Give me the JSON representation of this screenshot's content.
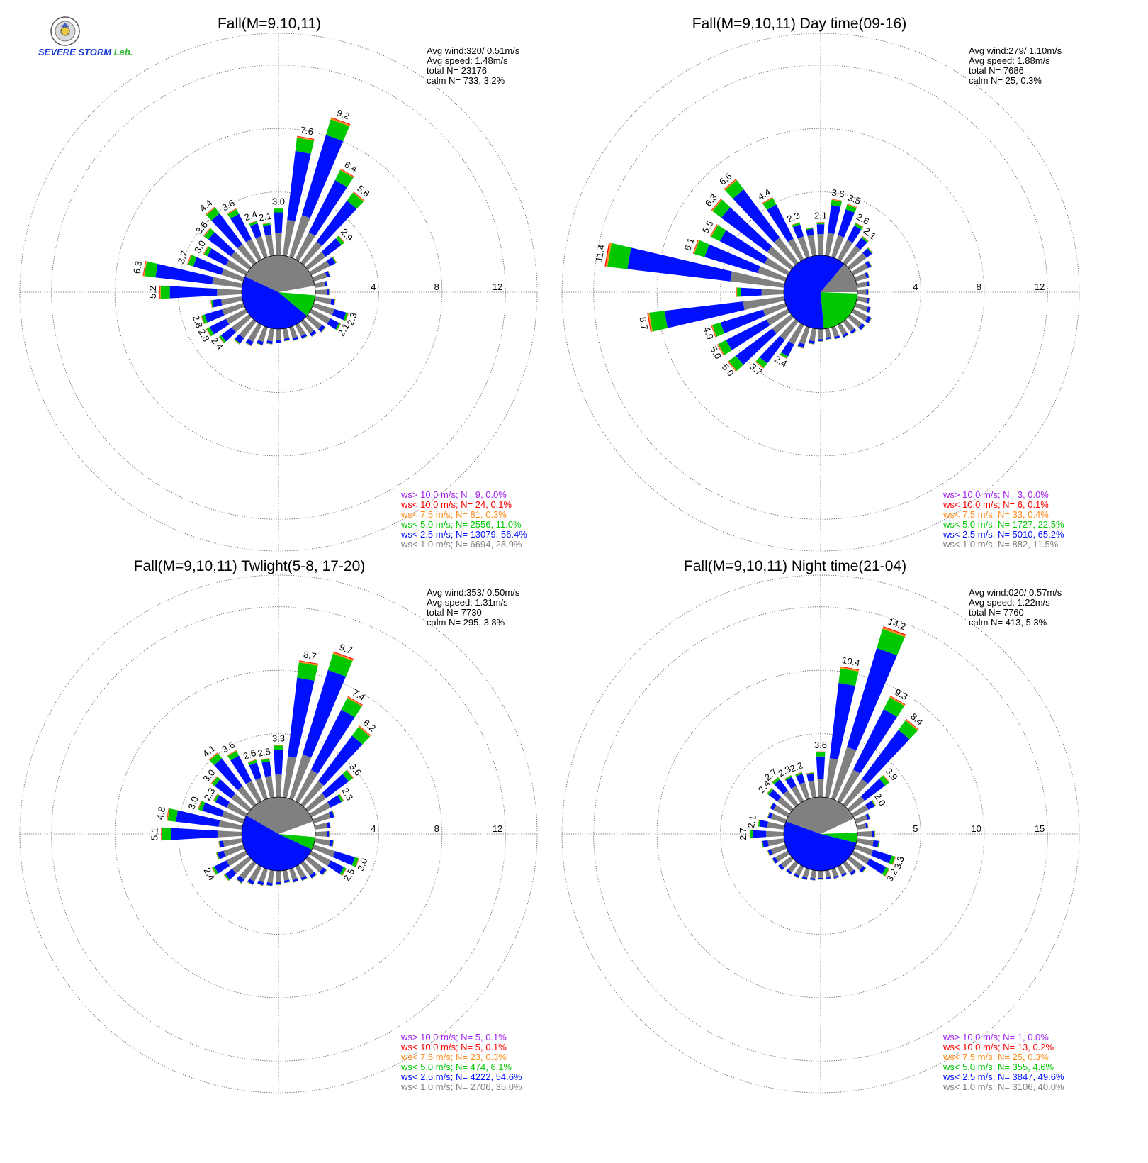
{
  "logo": {
    "text": "SEVERE STORM",
    "suffix": "Lab."
  },
  "colors": {
    "gt10": "#a020f0",
    "lt10": "#ff0000",
    "lt7_5": "#ff8c1a",
    "lt5": "#00c800",
    "lt2_5": "#0010ff",
    "lt1": "#808080",
    "calm": "#ffffff"
  },
  "chart_data": [
    {
      "type": "windrose",
      "title": "Fall(M=9,10,11)",
      "rings": [
        4,
        8,
        12
      ],
      "rmax": 14,
      "stats": {
        "avg_wind": "Avg wind:320/ 0.51m/s",
        "avg_speed": "Avg speed: 1.48m/s",
        "total": "total N=      23176",
        "calm": "calm N=    733,   3.2%"
      },
      "legend": [
        {
          "text": "ws> 10.0 m/s; N=     9,  0.0%",
          "color": "#a020f0"
        },
        {
          "text": "ws< 10.0 m/s; N=    24,  0.1%",
          "color": "#ff0000"
        },
        {
          "text": "ws<  7.5 m/s; N=    81,  0.3%",
          "color": "#ff8c1a"
        },
        {
          "text": "ws<  5.0 m/s; N=  2556, 11.0%",
          "color": "#00c800"
        },
        {
          "text": "ws<  2.5 m/s; N= 13079, 56.4%",
          "color": "#0010ff"
        },
        {
          "text": "ws<  1.0 m/s; N=  6694, 28.9%",
          "color": "#808080"
        }
      ],
      "pie": [
        {
          "name": "calm",
          "start": 80,
          "end": 95
        },
        {
          "name": "lt5",
          "start": 95,
          "end": 130
        },
        {
          "name": "lt2_5",
          "start": 130,
          "end": 295
        },
        {
          "name": "lt1",
          "start": 295,
          "end": 440
        }
      ],
      "bars": [
        {
          "dir": 0,
          "total": 3.0,
          "label": "3.0"
        },
        {
          "dir": 10,
          "total": 7.6,
          "label": "7.6"
        },
        {
          "dir": 20,
          "total": 9.2,
          "label": "9.2"
        },
        {
          "dir": 30,
          "total": 6.4,
          "label": "6.4"
        },
        {
          "dir": 40,
          "total": 5.6,
          "label": "5.6"
        },
        {
          "dir": 50,
          "total": 2.9,
          "label": "2.9"
        },
        {
          "dir": 60,
          "total": 1.8
        },
        {
          "dir": 70,
          "total": 1.1
        },
        {
          "dir": 80,
          "total": 0.8
        },
        {
          "dir": 90,
          "total": 0.9
        },
        {
          "dir": 100,
          "total": 1.3
        },
        {
          "dir": 110,
          "total": 2.3,
          "label": "2.3"
        },
        {
          "dir": 120,
          "total": 2.1,
          "label": "2.1"
        },
        {
          "dir": 130,
          "total": 1.4
        },
        {
          "dir": 140,
          "total": 1.2
        },
        {
          "dir": 150,
          "total": 1.0
        },
        {
          "dir": 160,
          "total": 0.9
        },
        {
          "dir": 170,
          "total": 0.8
        },
        {
          "dir": 180,
          "total": 0.9
        },
        {
          "dir": 190,
          "total": 1.0
        },
        {
          "dir": 200,
          "total": 1.2
        },
        {
          "dir": 210,
          "total": 1.5
        },
        {
          "dir": 220,
          "total": 1.8
        },
        {
          "dir": 230,
          "total": 2.4,
          "label": "2.4"
        },
        {
          "dir": 240,
          "total": 2.8,
          "label": "2.8"
        },
        {
          "dir": 250,
          "total": 2.8,
          "label": "2.8"
        },
        {
          "dir": 260,
          "total": 2.0
        },
        {
          "dir": 270,
          "total": 5.2,
          "label": "5.2"
        },
        {
          "dir": 280,
          "total": 6.3,
          "label": "6.3"
        },
        {
          "dir": 290,
          "total": 3.7,
          "label": "3.7"
        },
        {
          "dir": 300,
          "total": 3.0,
          "label": "3.0"
        },
        {
          "dir": 310,
          "total": 3.6,
          "label": "3.6"
        },
        {
          "dir": 320,
          "total": 4.4,
          "label": "4.4"
        },
        {
          "dir": 330,
          "total": 3.6,
          "label": "3.6"
        },
        {
          "dir": 340,
          "total": 2.4,
          "label": "2.4"
        },
        {
          "dir": 350,
          "total": 2.1,
          "label": "2.1"
        }
      ]
    },
    {
      "type": "windrose",
      "title": "Fall(M=9,10,11) Day time(09-16)",
      "rings": [
        4,
        8,
        12
      ],
      "rmax": 14,
      "stats": {
        "avg_wind": "Avg wind:279/ 1.10m/s",
        "avg_speed": "Avg speed: 1.88m/s",
        "total": "total N=        7686",
        "calm": "calm N=     25,   0.3%"
      },
      "legend": [
        {
          "text": "ws> 10.0 m/s; N=     3,  0.0%",
          "color": "#a020f0"
        },
        {
          "text": "ws< 10.0 m/s; N=     6,  0.1%",
          "color": "#ff0000"
        },
        {
          "text": "ws<  7.5 m/s; N=    33,  0.4%",
          "color": "#ff8c1a"
        },
        {
          "text": "ws<  5.0 m/s; N=  1727, 22.5%",
          "color": "#00c800"
        },
        {
          "text": "ws<  2.5 m/s; N=  5010, 65.2%",
          "color": "#0010ff"
        },
        {
          "text": "ws<  1.0 m/s; N=   882, 11.5%",
          "color": "#808080"
        }
      ],
      "pie": [
        {
          "name": "lt1",
          "start": 40,
          "end": 90
        },
        {
          "name": "calm",
          "start": 90,
          "end": 92
        },
        {
          "name": "lt5",
          "start": 92,
          "end": 175
        },
        {
          "name": "lt2_5",
          "start": 175,
          "end": 400
        }
      ],
      "bars": [
        {
          "dir": 0,
          "total": 2.1,
          "label": "2.1"
        },
        {
          "dir": 10,
          "total": 3.6,
          "label": "3.6"
        },
        {
          "dir": 20,
          "total": 3.5,
          "label": "3.5"
        },
        {
          "dir": 30,
          "total": 2.6,
          "label": "2.6"
        },
        {
          "dir": 40,
          "total": 2.1,
          "label": "2.1"
        },
        {
          "dir": 50,
          "total": 1.8
        },
        {
          "dir": 60,
          "total": 1.3
        },
        {
          "dir": 70,
          "total": 0.9
        },
        {
          "dir": 80,
          "total": 0.8
        },
        {
          "dir": 90,
          "total": 0.7
        },
        {
          "dir": 100,
          "total": 0.8
        },
        {
          "dir": 110,
          "total": 1.0
        },
        {
          "dir": 120,
          "total": 1.3
        },
        {
          "dir": 130,
          "total": 1.2
        },
        {
          "dir": 140,
          "total": 1.0
        },
        {
          "dir": 150,
          "total": 0.9
        },
        {
          "dir": 160,
          "total": 0.8
        },
        {
          "dir": 170,
          "total": 0.7
        },
        {
          "dir": 180,
          "total": 0.8
        },
        {
          "dir": 190,
          "total": 1.0
        },
        {
          "dir": 200,
          "total": 1.4
        },
        {
          "dir": 210,
          "total": 2.4,
          "label": "2.4"
        },
        {
          "dir": 220,
          "total": 3.7,
          "label": "3.7"
        },
        {
          "dir": 230,
          "total": 5.0,
          "label": "5.0"
        },
        {
          "dir": 240,
          "total": 5.0,
          "label": "5.0"
        },
        {
          "dir": 250,
          "total": 4.9,
          "label": "4.9"
        },
        {
          "dir": 260,
          "total": 8.7,
          "label": "8.7"
        },
        {
          "dir": 270,
          "total": 3.0
        },
        {
          "dir": 280,
          "total": 11.4,
          "label": "11.4"
        },
        {
          "dir": 290,
          "total": 6.1,
          "label": "6.1"
        },
        {
          "dir": 300,
          "total": 5.5,
          "label": "5.5"
        },
        {
          "dir": 310,
          "total": 6.3,
          "label": "6.3"
        },
        {
          "dir": 320,
          "total": 6.6,
          "label": "6.6"
        },
        {
          "dir": 330,
          "total": 4.4,
          "label": "4.4"
        },
        {
          "dir": 340,
          "total": 2.3,
          "label": "2.3"
        },
        {
          "dir": 350,
          "total": 1.8
        }
      ]
    },
    {
      "type": "windrose",
      "title": "Fall(M=9,10,11) Twlight(5-8, 17-20)",
      "rings": [
        4,
        8,
        12
      ],
      "rmax": 14,
      "stats": {
        "avg_wind": "Avg wind:353/ 0.50m/s",
        "avg_speed": "Avg speed: 1.31m/s",
        "total": "total N=        7730",
        "calm": "calm N=    295,   3.8%"
      },
      "legend": [
        {
          "text": "ws> 10.0 m/s; N=     5,  0.1%",
          "color": "#a020f0"
        },
        {
          "text": "ws< 10.0 m/s; N=     5,  0.1%",
          "color": "#ff0000"
        },
        {
          "text": "ws<  7.5 m/s; N=    23,  0.3%",
          "color": "#ff8c1a"
        },
        {
          "text": "ws<  5.0 m/s; N=   474,  6.1%",
          "color": "#00c800"
        },
        {
          "text": "ws<  2.5 m/s; N=  4222, 54.6%",
          "color": "#0010ff"
        },
        {
          "text": "ws<  1.0 m/s; N=  2706, 35.0%",
          "color": "#808080"
        }
      ],
      "pie": [
        {
          "name": "calm",
          "start": 70,
          "end": 95
        },
        {
          "name": "lt5",
          "start": 95,
          "end": 115
        },
        {
          "name": "lt2_5",
          "start": 115,
          "end": 300
        },
        {
          "name": "lt1",
          "start": 300,
          "end": 430
        }
      ],
      "bars": [
        {
          "dir": 0,
          "total": 3.3,
          "label": "3.3"
        },
        {
          "dir": 10,
          "total": 8.7,
          "label": "8.7"
        },
        {
          "dir": 20,
          "total": 9.7,
          "label": "9.7"
        },
        {
          "dir": 30,
          "total": 7.4,
          "label": "7.4"
        },
        {
          "dir": 40,
          "total": 6.2,
          "label": "6.2"
        },
        {
          "dir": 50,
          "total": 3.6,
          "label": "3.6"
        },
        {
          "dir": 60,
          "total": 2.3,
          "label": "2.3"
        },
        {
          "dir": 70,
          "total": 1.4
        },
        {
          "dir": 80,
          "total": 1.0
        },
        {
          "dir": 90,
          "total": 0.9
        },
        {
          "dir": 100,
          "total": 1.2
        },
        {
          "dir": 110,
          "total": 3.0,
          "label": "3.0"
        },
        {
          "dir": 120,
          "total": 2.5,
          "label": "2.5"
        },
        {
          "dir": 130,
          "total": 1.5
        },
        {
          "dir": 140,
          "total": 1.2
        },
        {
          "dir": 150,
          "total": 1.0
        },
        {
          "dir": 160,
          "total": 0.9
        },
        {
          "dir": 170,
          "total": 0.8
        },
        {
          "dir": 180,
          "total": 0.9
        },
        {
          "dir": 190,
          "total": 1.0
        },
        {
          "dir": 200,
          "total": 1.1
        },
        {
          "dir": 210,
          "total": 1.3
        },
        {
          "dir": 220,
          "total": 1.6
        },
        {
          "dir": 230,
          "total": 2.0
        },
        {
          "dir": 240,
          "total": 2.4,
          "label": "2.4"
        },
        {
          "dir": 250,
          "total": 1.8
        },
        {
          "dir": 260,
          "total": 1.5
        },
        {
          "dir": 270,
          "total": 5.1,
          "label": "5.1"
        },
        {
          "dir": 280,
          "total": 4.8,
          "label": "4.8"
        },
        {
          "dir": 290,
          "total": 3.0,
          "label": "3.0"
        },
        {
          "dir": 300,
          "total": 2.3,
          "label": "2.3"
        },
        {
          "dir": 310,
          "total": 3.0,
          "label": "3.0"
        },
        {
          "dir": 320,
          "total": 4.1,
          "label": "4.1"
        },
        {
          "dir": 330,
          "total": 3.6,
          "label": "3.6"
        },
        {
          "dir": 340,
          "total": 2.6,
          "label": "2.6"
        },
        {
          "dir": 350,
          "total": 2.5,
          "label": "2.5"
        }
      ]
    },
    {
      "type": "windrose",
      "title": "Fall(M=9,10,11) Night time(21-04)",
      "rings": [
        5,
        10,
        15
      ],
      "rmax": 17.5,
      "stats": {
        "avg_wind": "Avg wind:020/ 0.57m/s",
        "avg_speed": "Avg speed: 1.22m/s",
        "total": "total N=        7760",
        "calm": "calm N=    413,   5.3%"
      },
      "legend": [
        {
          "text": "ws> 10.0 m/s; N=     1,  0.0%",
          "color": "#a020f0"
        },
        {
          "text": "ws< 10.0 m/s; N=    13,  0.2%",
          "color": "#ff0000"
        },
        {
          "text": "ws<  7.5 m/s; N=    25,  0.3%",
          "color": "#ff8c1a"
        },
        {
          "text": "ws<  5.0 m/s; N=   355,  4.6%",
          "color": "#00c800"
        },
        {
          "text": "ws<  2.5 m/s; N=  3847, 49.6%",
          "color": "#0010ff"
        },
        {
          "text": "ws<  1.0 m/s; N=  3106, 40.0%",
          "color": "#808080"
        }
      ],
      "pie": [
        {
          "name": "calm",
          "start": 65,
          "end": 88
        },
        {
          "name": "lt5",
          "start": 88,
          "end": 104
        },
        {
          "name": "lt2_5",
          "start": 104,
          "end": 290
        },
        {
          "name": "lt1",
          "start": 290,
          "end": 425
        }
      ],
      "bars": [
        {
          "dir": 0,
          "total": 3.6,
          "label": "3.6"
        },
        {
          "dir": 10,
          "total": 10.4,
          "label": "10.4"
        },
        {
          "dir": 20,
          "total": 14.2,
          "label": "14.2"
        },
        {
          "dir": 30,
          "total": 9.3,
          "label": "9.3"
        },
        {
          "dir": 40,
          "total": 8.4,
          "label": "8.4"
        },
        {
          "dir": 50,
          "total": 3.9,
          "label": "3.9"
        },
        {
          "dir": 60,
          "total": 2.0,
          "label": "2.0"
        },
        {
          "dir": 70,
          "total": 1.2
        },
        {
          "dir": 80,
          "total": 0.9
        },
        {
          "dir": 90,
          "total": 1.4
        },
        {
          "dir": 100,
          "total": 1.8
        },
        {
          "dir": 110,
          "total": 3.3,
          "label": "3.3"
        },
        {
          "dir": 120,
          "total": 3.2,
          "label": "3.2"
        },
        {
          "dir": 130,
          "total": 1.6
        },
        {
          "dir": 140,
          "total": 1.2
        },
        {
          "dir": 150,
          "total": 0.9
        },
        {
          "dir": 160,
          "total": 0.8
        },
        {
          "dir": 170,
          "total": 0.7
        },
        {
          "dir": 180,
          "total": 0.7
        },
        {
          "dir": 190,
          "total": 0.8
        },
        {
          "dir": 200,
          "total": 0.9
        },
        {
          "dir": 210,
          "total": 1.0
        },
        {
          "dir": 220,
          "total": 1.1
        },
        {
          "dir": 230,
          "total": 1.3
        },
        {
          "dir": 240,
          "total": 1.4
        },
        {
          "dir": 250,
          "total": 1.5
        },
        {
          "dir": 260,
          "total": 1.8
        },
        {
          "dir": 270,
          "total": 2.7,
          "label": "2.7"
        },
        {
          "dir": 280,
          "total": 2.1,
          "label": "2.1"
        },
        {
          "dir": 290,
          "total": 1.5
        },
        {
          "dir": 300,
          "total": 1.6
        },
        {
          "dir": 310,
          "total": 2.4,
          "label": "2.4"
        },
        {
          "dir": 320,
          "total": 2.7,
          "label": "2.7"
        },
        {
          "dir": 330,
          "total": 2.3,
          "label": "2.3"
        },
        {
          "dir": 340,
          "total": 2.2,
          "label": "2.2"
        },
        {
          "dir": 350,
          "total": 2.0
        }
      ]
    }
  ]
}
